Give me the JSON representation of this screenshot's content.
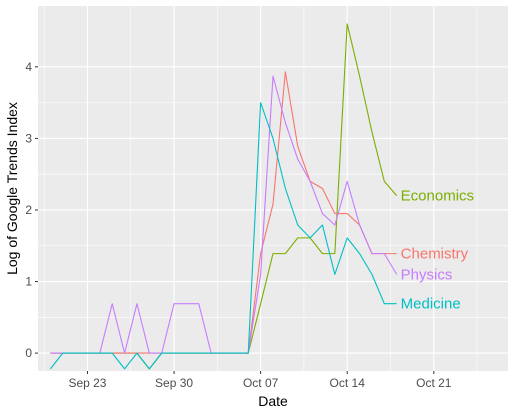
{
  "chart_data": {
    "type": "line",
    "title": "",
    "xlabel": "Date",
    "ylabel": "Log of Google Trends Index",
    "x_type": "date",
    "xlim": [
      "2018-09-19",
      "2018-10-27"
    ],
    "ylim": [
      -0.25,
      4.85
    ],
    "x_ticks": [
      {
        "date": "2018-09-23",
        "label": "Sep 23"
      },
      {
        "date": "2018-09-30",
        "label": "Sep 30"
      },
      {
        "date": "2018-10-07",
        "label": "Oct 07"
      },
      {
        "date": "2018-10-14",
        "label": "Oct 14"
      },
      {
        "date": "2018-10-21",
        "label": "Oct 21"
      }
    ],
    "y_ticks": [
      0,
      1,
      2,
      3,
      4
    ],
    "grid": true,
    "background": "#ebebeb",
    "legend": "direct-labels-at-line-ends",
    "series": [
      {
        "name": "Economics",
        "color": "#7CAE00",
        "points": [
          {
            "x": "2018-09-20",
            "y": 0
          },
          {
            "x": "2018-09-21",
            "y": 0
          },
          {
            "x": "2018-09-22",
            "y": 0
          },
          {
            "x": "2018-09-23",
            "y": 0
          },
          {
            "x": "2018-09-24",
            "y": 0
          },
          {
            "x": "2018-09-25",
            "y": 0
          },
          {
            "x": "2018-09-26",
            "y": 0
          },
          {
            "x": "2018-09-27",
            "y": 0
          },
          {
            "x": "2018-09-28",
            "y": -0.22
          },
          {
            "x": "2018-09-29",
            "y": 0
          },
          {
            "x": "2018-09-30",
            "y": 0
          },
          {
            "x": "2018-10-01",
            "y": 0
          },
          {
            "x": "2018-10-02",
            "y": 0
          },
          {
            "x": "2018-10-03",
            "y": 0
          },
          {
            "x": "2018-10-04",
            "y": 0
          },
          {
            "x": "2018-10-05",
            "y": 0
          },
          {
            "x": "2018-10-06",
            "y": 0
          },
          {
            "x": "2018-10-07",
            "y": 0.69
          },
          {
            "x": "2018-10-08",
            "y": 1.39
          },
          {
            "x": "2018-10-09",
            "y": 1.39
          },
          {
            "x": "2018-10-10",
            "y": 1.61
          },
          {
            "x": "2018-10-11",
            "y": 1.61
          },
          {
            "x": "2018-10-12",
            "y": 1.39
          },
          {
            "x": "2018-10-13",
            "y": 1.39
          },
          {
            "x": "2018-10-14",
            "y": 4.6
          },
          {
            "x": "2018-10-15",
            "y": 3.87
          },
          {
            "x": "2018-10-16",
            "y": 3.09
          },
          {
            "x": "2018-10-17",
            "y": 2.4
          },
          {
            "x": "2018-10-18",
            "y": 2.2
          }
        ]
      },
      {
        "name": "Chemistry",
        "color": "#F8766D",
        "points": [
          {
            "x": "2018-09-20",
            "y": 0
          },
          {
            "x": "2018-09-21",
            "y": 0
          },
          {
            "x": "2018-09-22",
            "y": 0
          },
          {
            "x": "2018-09-23",
            "y": 0
          },
          {
            "x": "2018-09-24",
            "y": 0
          },
          {
            "x": "2018-09-25",
            "y": 0
          },
          {
            "x": "2018-09-26",
            "y": 0
          },
          {
            "x": "2018-09-27",
            "y": 0
          },
          {
            "x": "2018-09-28",
            "y": 0
          },
          {
            "x": "2018-09-29",
            "y": 0
          },
          {
            "x": "2018-09-30",
            "y": 0
          },
          {
            "x": "2018-10-01",
            "y": 0
          },
          {
            "x": "2018-10-02",
            "y": 0
          },
          {
            "x": "2018-10-03",
            "y": 0
          },
          {
            "x": "2018-10-04",
            "y": 0
          },
          {
            "x": "2018-10-05",
            "y": 0
          },
          {
            "x": "2018-10-06",
            "y": 0
          },
          {
            "x": "2018-10-07",
            "y": 1.39
          },
          {
            "x": "2018-10-08",
            "y": 2.08
          },
          {
            "x": "2018-10-09",
            "y": 3.93
          },
          {
            "x": "2018-10-10",
            "y": 2.89
          },
          {
            "x": "2018-10-11",
            "y": 2.4
          },
          {
            "x": "2018-10-12",
            "y": 2.3
          },
          {
            "x": "2018-10-13",
            "y": 1.95
          },
          {
            "x": "2018-10-14",
            "y": 1.95
          },
          {
            "x": "2018-10-15",
            "y": 1.79
          },
          {
            "x": "2018-10-16",
            "y": 1.39
          },
          {
            "x": "2018-10-17",
            "y": 1.39
          },
          {
            "x": "2018-10-18",
            "y": 1.39
          }
        ]
      },
      {
        "name": "Physics",
        "color": "#C77CFF",
        "points": [
          {
            "x": "2018-09-20",
            "y": 0
          },
          {
            "x": "2018-09-21",
            "y": 0
          },
          {
            "x": "2018-09-22",
            "y": 0
          },
          {
            "x": "2018-09-23",
            "y": 0
          },
          {
            "x": "2018-09-24",
            "y": 0
          },
          {
            "x": "2018-09-25",
            "y": 0.69
          },
          {
            "x": "2018-09-26",
            "y": 0
          },
          {
            "x": "2018-09-27",
            "y": 0.69
          },
          {
            "x": "2018-09-28",
            "y": 0
          },
          {
            "x": "2018-09-29",
            "y": 0
          },
          {
            "x": "2018-09-30",
            "y": 0.69
          },
          {
            "x": "2018-10-01",
            "y": 0.69
          },
          {
            "x": "2018-10-02",
            "y": 0.69
          },
          {
            "x": "2018-10-03",
            "y": 0
          },
          {
            "x": "2018-10-04",
            "y": 0
          },
          {
            "x": "2018-10-05",
            "y": 0
          },
          {
            "x": "2018-10-06",
            "y": 0
          },
          {
            "x": "2018-10-07",
            "y": 1.1
          },
          {
            "x": "2018-10-08",
            "y": 3.87
          },
          {
            "x": "2018-10-09",
            "y": 3.22
          },
          {
            "x": "2018-10-10",
            "y": 2.71
          },
          {
            "x": "2018-10-11",
            "y": 2.4
          },
          {
            "x": "2018-10-12",
            "y": 1.95
          },
          {
            "x": "2018-10-13",
            "y": 1.79
          },
          {
            "x": "2018-10-14",
            "y": 2.4
          },
          {
            "x": "2018-10-15",
            "y": 1.79
          },
          {
            "x": "2018-10-16",
            "y": 1.39
          },
          {
            "x": "2018-10-17",
            "y": 1.39
          },
          {
            "x": "2018-10-18",
            "y": 1.1
          }
        ]
      },
      {
        "name": "Medicine",
        "color": "#00BFC4",
        "points": [
          {
            "x": "2018-09-20",
            "y": -0.22
          },
          {
            "x": "2018-09-21",
            "y": 0
          },
          {
            "x": "2018-09-22",
            "y": 0
          },
          {
            "x": "2018-09-23",
            "y": 0
          },
          {
            "x": "2018-09-24",
            "y": 0
          },
          {
            "x": "2018-09-25",
            "y": 0
          },
          {
            "x": "2018-09-26",
            "y": -0.22
          },
          {
            "x": "2018-09-27",
            "y": 0
          },
          {
            "x": "2018-09-28",
            "y": -0.22
          },
          {
            "x": "2018-09-29",
            "y": 0
          },
          {
            "x": "2018-09-30",
            "y": 0
          },
          {
            "x": "2018-10-01",
            "y": 0
          },
          {
            "x": "2018-10-02",
            "y": 0
          },
          {
            "x": "2018-10-03",
            "y": 0
          },
          {
            "x": "2018-10-04",
            "y": 0
          },
          {
            "x": "2018-10-05",
            "y": 0
          },
          {
            "x": "2018-10-06",
            "y": 0
          },
          {
            "x": "2018-10-07",
            "y": 3.5
          },
          {
            "x": "2018-10-08",
            "y": 3.0
          },
          {
            "x": "2018-10-09",
            "y": 2.3
          },
          {
            "x": "2018-10-10",
            "y": 1.79
          },
          {
            "x": "2018-10-11",
            "y": 1.61
          },
          {
            "x": "2018-10-12",
            "y": 1.79
          },
          {
            "x": "2018-10-13",
            "y": 1.1
          },
          {
            "x": "2018-10-14",
            "y": 1.61
          },
          {
            "x": "2018-10-15",
            "y": 1.39
          },
          {
            "x": "2018-10-16",
            "y": 1.1
          },
          {
            "x": "2018-10-17",
            "y": 0.69
          },
          {
            "x": "2018-10-18",
            "y": 0.69
          }
        ]
      }
    ]
  }
}
